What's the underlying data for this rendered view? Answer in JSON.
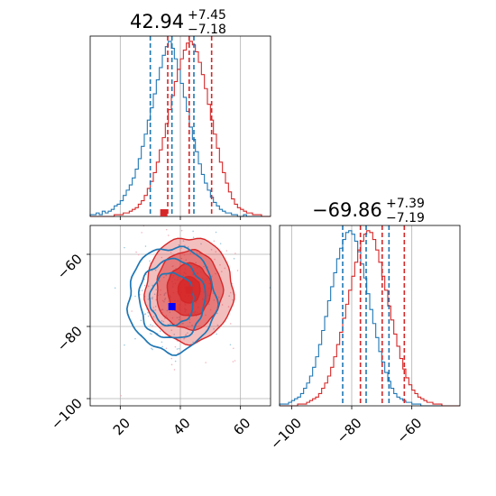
{
  "chart_data": [
    {
      "type": "histogram",
      "panel": "marginal-param-1",
      "title": {
        "value": "42.94",
        "upper": "+7.45",
        "lower": "−7.18"
      },
      "xlim": [
        10,
        70
      ],
      "xticks": [
        20,
        40,
        60
      ],
      "grid": true,
      "quantile_lines": {
        "blue": [
          30.0,
          44.5
        ],
        "red": [
          35.8,
          50.4
        ]
      },
      "median_lines": {
        "blue": 37.2,
        "red": 42.94
      },
      "series": [
        {
          "color": "#1f77b4",
          "bin_start": 10,
          "bin_width": 1,
          "counts": [
            1,
            1,
            2,
            1,
            3,
            2,
            3,
            4,
            6,
            7,
            9,
            12,
            15,
            18,
            22,
            27,
            33,
            40,
            47,
            55,
            62,
            70,
            78,
            85,
            92,
            97,
            100,
            96,
            90,
            84,
            76,
            68,
            60,
            51,
            44,
            37,
            30,
            24,
            19,
            15,
            11,
            8,
            6,
            4,
            3,
            2,
            2,
            1,
            1,
            0,
            0,
            1,
            0,
            0,
            0,
            0,
            0,
            0,
            0,
            0
          ]
        },
        {
          "color": "#d62728",
          "bin_start": 10,
          "bin_width": 1,
          "counts": [
            0,
            0,
            0,
            0,
            0,
            0,
            0,
            0,
            1,
            1,
            1,
            2,
            2,
            3,
            4,
            5,
            7,
            9,
            12,
            16,
            20,
            25,
            31,
            38,
            45,
            53,
            61,
            69,
            77,
            84,
            90,
            95,
            99,
            100,
            98,
            94,
            88,
            81,
            73,
            64,
            55,
            47,
            39,
            31,
            25,
            19,
            14,
            10,
            7,
            5,
            4,
            3,
            2,
            2,
            1,
            1,
            1,
            0,
            0,
            0
          ]
        }
      ]
    },
    {
      "type": "contour",
      "panel": "joint-param-1-param-2",
      "xlim": [
        10,
        70
      ],
      "ylim": [
        -102,
        -52
      ],
      "xticks": [
        20,
        40,
        60
      ],
      "yticks": [
        -60,
        -80,
        -100
      ],
      "grid": true,
      "series": [
        {
          "color": "#1f77b4",
          "filled": false,
          "center": [
            37.2,
            -72.5
          ],
          "sigma": [
            7.3,
            7.3
          ]
        },
        {
          "color": "#d62728",
          "filled": true,
          "center": [
            42.94,
            -69.86
          ],
          "sigma": [
            7.3,
            7.3
          ]
        }
      ],
      "markers": [
        {
          "color": "#d62728",
          "x": 34.5,
          "y": -48.5
        },
        {
          "color": "#d62728",
          "x": 42.9,
          "y": -69.9
        },
        {
          "color": "#0000ff",
          "x": 37.2,
          "y": -74.5
        }
      ]
    },
    {
      "type": "histogram",
      "panel": "marginal-param-2",
      "title": {
        "value": "−69.86",
        "upper": "+7.39",
        "lower": "−7.19"
      },
      "xlim": [
        -104,
        -44
      ],
      "xticks": [
        -100,
        -80,
        -60
      ],
      "grid": true,
      "quantile_lines": {
        "blue": [
          -83.0,
          -67.6
        ],
        "red": [
          -77.1,
          -62.5
        ]
      },
      "median_lines": {
        "blue": -75.2,
        "red": -69.86
      },
      "series": [
        {
          "color": "#1f77b4",
          "bin_start": -104,
          "bin_width": 1,
          "counts": [
            1,
            1,
            1,
            2,
            3,
            4,
            5,
            7,
            10,
            13,
            17,
            22,
            28,
            35,
            43,
            51,
            60,
            68,
            76,
            84,
            90,
            95,
            99,
            100,
            98,
            94,
            88,
            81,
            73,
            64,
            55,
            47,
            39,
            31,
            25,
            19,
            14,
            10,
            7,
            5,
            4,
            3,
            2,
            2,
            1,
            1,
            1,
            0,
            0,
            0,
            0,
            0,
            0,
            0,
            0,
            0,
            0,
            0,
            0,
            0
          ]
        },
        {
          "color": "#d62728",
          "bin_start": -104,
          "bin_width": 1,
          "counts": [
            0,
            0,
            0,
            0,
            0,
            0,
            1,
            1,
            1,
            2,
            3,
            4,
            5,
            7,
            10,
            13,
            17,
            22,
            28,
            35,
            42,
            50,
            58,
            66,
            74,
            82,
            89,
            94,
            98,
            100,
            99,
            95,
            89,
            82,
            74,
            66,
            57,
            49,
            41,
            34,
            27,
            21,
            16,
            12,
            9,
            7,
            5,
            4,
            3,
            2,
            2,
            1,
            1,
            1,
            0,
            0,
            0,
            0,
            0,
            0
          ]
        }
      ]
    }
  ]
}
